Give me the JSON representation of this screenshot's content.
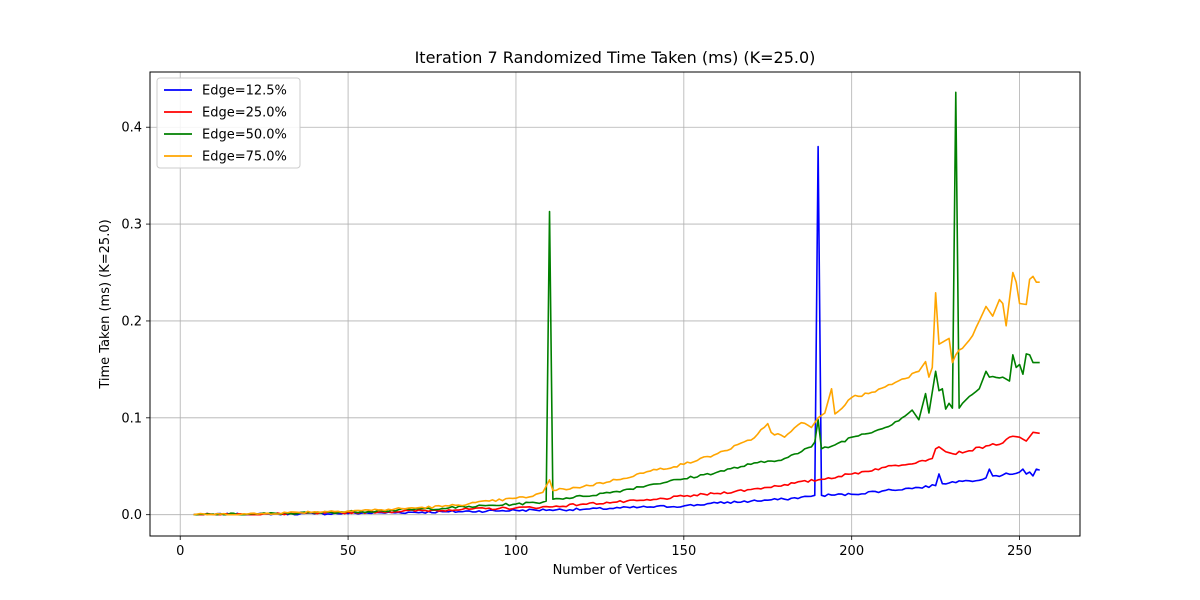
{
  "chart_data": {
    "type": "line",
    "title": "Iteration 7 Randomized Time Taken (ms) (K=25.0)",
    "xlabel": "Number of Vertices",
    "ylabel": "Time Taken (ms) (K=25.0)",
    "xlim": [
      -9,
      268
    ],
    "ylim": [
      -0.022,
      0.457
    ],
    "xticks": [
      0,
      50,
      100,
      150,
      200,
      250
    ],
    "yticks": [
      0.0,
      0.1,
      0.2,
      0.3,
      0.4
    ],
    "xtick_labels": [
      "0",
      "50",
      "100",
      "150",
      "200",
      "250"
    ],
    "ytick_labels": [
      "0.0",
      "0.1",
      "0.2",
      "0.3",
      "0.4"
    ],
    "grid": true,
    "legend_position": "top-left",
    "x_range": [
      4,
      256
    ],
    "series": [
      {
        "name": "Edge=12.5%",
        "color": "#0000ff",
        "points": [
          [
            4,
            0
          ],
          [
            20,
            0.0003
          ],
          [
            40,
            0.001
          ],
          [
            60,
            0.002
          ],
          [
            80,
            0.003
          ],
          [
            100,
            0.0045
          ],
          [
            110,
            0.005
          ],
          [
            120,
            0.0055
          ],
          [
            140,
            0.008
          ],
          [
            150,
            0.009
          ],
          [
            160,
            0.012
          ],
          [
            170,
            0.014
          ],
          [
            180,
            0.016
          ],
          [
            188,
            0.019
          ],
          [
            189,
            0.02
          ],
          [
            190,
            0.38
          ],
          [
            191,
            0.02
          ],
          [
            200,
            0.021
          ],
          [
            210,
            0.025
          ],
          [
            220,
            0.028
          ],
          [
            225,
            0.03
          ],
          [
            226,
            0.042
          ],
          [
            227,
            0.032
          ],
          [
            230,
            0.034
          ],
          [
            235,
            0.035
          ],
          [
            240,
            0.038
          ],
          [
            241,
            0.047
          ],
          [
            242,
            0.04
          ],
          [
            245,
            0.041
          ],
          [
            250,
            0.044
          ],
          [
            251,
            0.047
          ],
          [
            252,
            0.042
          ],
          [
            253,
            0.044
          ],
          [
            254,
            0.04
          ],
          [
            255,
            0.047
          ],
          [
            256,
            0.046
          ]
        ]
      },
      {
        "name": "Edge=25.0%",
        "color": "#ff0000",
        "points": [
          [
            4,
            0
          ],
          [
            20,
            0.0004
          ],
          [
            40,
            0.0015
          ],
          [
            60,
            0.003
          ],
          [
            80,
            0.005
          ],
          [
            100,
            0.007
          ],
          [
            110,
            0.008
          ],
          [
            120,
            0.011
          ],
          [
            130,
            0.013
          ],
          [
            140,
            0.015
          ],
          [
            150,
            0.019
          ],
          [
            160,
            0.022
          ],
          [
            170,
            0.026
          ],
          [
            180,
            0.031
          ],
          [
            190,
            0.036
          ],
          [
            200,
            0.042
          ],
          [
            210,
            0.049
          ],
          [
            220,
            0.055
          ],
          [
            224,
            0.058
          ],
          [
            225,
            0.068
          ],
          [
            226,
            0.07
          ],
          [
            228,
            0.065
          ],
          [
            230,
            0.063
          ],
          [
            235,
            0.066
          ],
          [
            240,
            0.071
          ],
          [
            245,
            0.074
          ],
          [
            248,
            0.081
          ],
          [
            250,
            0.08
          ],
          [
            252,
            0.076
          ],
          [
            254,
            0.085
          ],
          [
            256,
            0.084
          ]
        ]
      },
      {
        "name": "Edge=50.0%",
        "color": "#008000",
        "points": [
          [
            4,
            0
          ],
          [
            20,
            0.0005
          ],
          [
            40,
            0.002
          ],
          [
            60,
            0.004
          ],
          [
            80,
            0.007
          ],
          [
            100,
            0.011
          ],
          [
            108,
            0.013
          ],
          [
            109,
            0.014
          ],
          [
            110,
            0.313
          ],
          [
            111,
            0.016
          ],
          [
            120,
            0.019
          ],
          [
            130,
            0.024
          ],
          [
            140,
            0.031
          ],
          [
            150,
            0.037
          ],
          [
            160,
            0.044
          ],
          [
            170,
            0.052
          ],
          [
            180,
            0.058
          ],
          [
            185,
            0.065
          ],
          [
            188,
            0.07
          ],
          [
            189,
            0.075
          ],
          [
            190,
            0.098
          ],
          [
            191,
            0.068
          ],
          [
            195,
            0.072
          ],
          [
            200,
            0.08
          ],
          [
            210,
            0.09
          ],
          [
            215,
            0.1
          ],
          [
            218,
            0.108
          ],
          [
            220,
            0.098
          ],
          [
            222,
            0.125
          ],
          [
            223,
            0.105
          ],
          [
            225,
            0.148
          ],
          [
            226,
            0.128
          ],
          [
            227,
            0.13
          ],
          [
            228,
            0.109
          ],
          [
            229,
            0.115
          ],
          [
            230,
            0.11
          ],
          [
            231,
            0.436
          ],
          [
            232,
            0.11
          ],
          [
            233,
            0.115
          ],
          [
            235,
            0.122
          ],
          [
            238,
            0.13
          ],
          [
            240,
            0.148
          ],
          [
            241,
            0.142
          ],
          [
            245,
            0.142
          ],
          [
            247,
            0.138
          ],
          [
            248,
            0.165
          ],
          [
            249,
            0.152
          ],
          [
            250,
            0.155
          ],
          [
            251,
            0.145
          ],
          [
            252,
            0.166
          ],
          [
            253,
            0.165
          ],
          [
            254,
            0.157
          ],
          [
            256,
            0.157
          ]
        ]
      },
      {
        "name": "Edge=75.0%",
        "color": "#ffa500",
        "points": [
          [
            4,
            0
          ],
          [
            20,
            0.0006
          ],
          [
            40,
            0.003
          ],
          [
            60,
            0.005
          ],
          [
            80,
            0.009
          ],
          [
            100,
            0.017
          ],
          [
            105,
            0.019
          ],
          [
            108,
            0.023
          ],
          [
            110,
            0.036
          ],
          [
            111,
            0.025
          ],
          [
            120,
            0.029
          ],
          [
            130,
            0.036
          ],
          [
            140,
            0.045
          ],
          [
            150,
            0.052
          ],
          [
            160,
            0.063
          ],
          [
            170,
            0.077
          ],
          [
            175,
            0.094
          ],
          [
            176,
            0.085
          ],
          [
            180,
            0.08
          ],
          [
            185,
            0.095
          ],
          [
            188,
            0.09
          ],
          [
            190,
            0.1
          ],
          [
            192,
            0.105
          ],
          [
            194,
            0.13
          ],
          [
            195,
            0.104
          ],
          [
            200,
            0.121
          ],
          [
            205,
            0.125
          ],
          [
            210,
            0.132
          ],
          [
            215,
            0.14
          ],
          [
            220,
            0.148
          ],
          [
            222,
            0.158
          ],
          [
            223,
            0.142
          ],
          [
            224,
            0.152
          ],
          [
            225,
            0.229
          ],
          [
            226,
            0.176
          ],
          [
            228,
            0.18
          ],
          [
            229,
            0.182
          ],
          [
            230,
            0.157
          ],
          [
            231,
            0.165
          ],
          [
            232,
            0.17
          ],
          [
            235,
            0.18
          ],
          [
            238,
            0.2
          ],
          [
            240,
            0.215
          ],
          [
            242,
            0.205
          ],
          [
            244,
            0.222
          ],
          [
            245,
            0.218
          ],
          [
            246,
            0.195
          ],
          [
            248,
            0.25
          ],
          [
            249,
            0.24
          ],
          [
            250,
            0.218
          ],
          [
            252,
            0.217
          ],
          [
            253,
            0.243
          ],
          [
            254,
            0.246
          ],
          [
            255,
            0.24
          ],
          [
            256,
            0.24
          ]
        ]
      }
    ]
  }
}
